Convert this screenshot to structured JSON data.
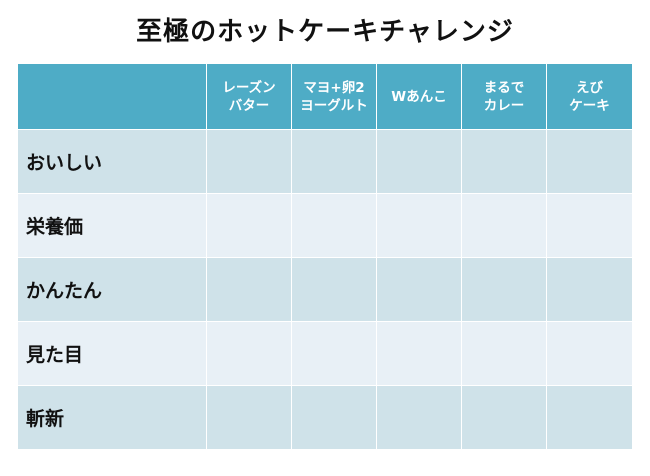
{
  "title": "至極のホットケーキチャレンジ",
  "table": {
    "columns": [
      "",
      "レーズン\nバター",
      "マヨ+卵2\nヨーグルト",
      "Wあんこ",
      "まるで\nカレー",
      "えび\nケーキ"
    ],
    "rows": [
      "おいしい",
      "栄養価",
      "かんたん",
      "見た目",
      "斬新"
    ]
  },
  "colors": {
    "header": "#4eacc6",
    "row_dark": "#cfe2e9",
    "row_light": "#e8f0f6"
  }
}
